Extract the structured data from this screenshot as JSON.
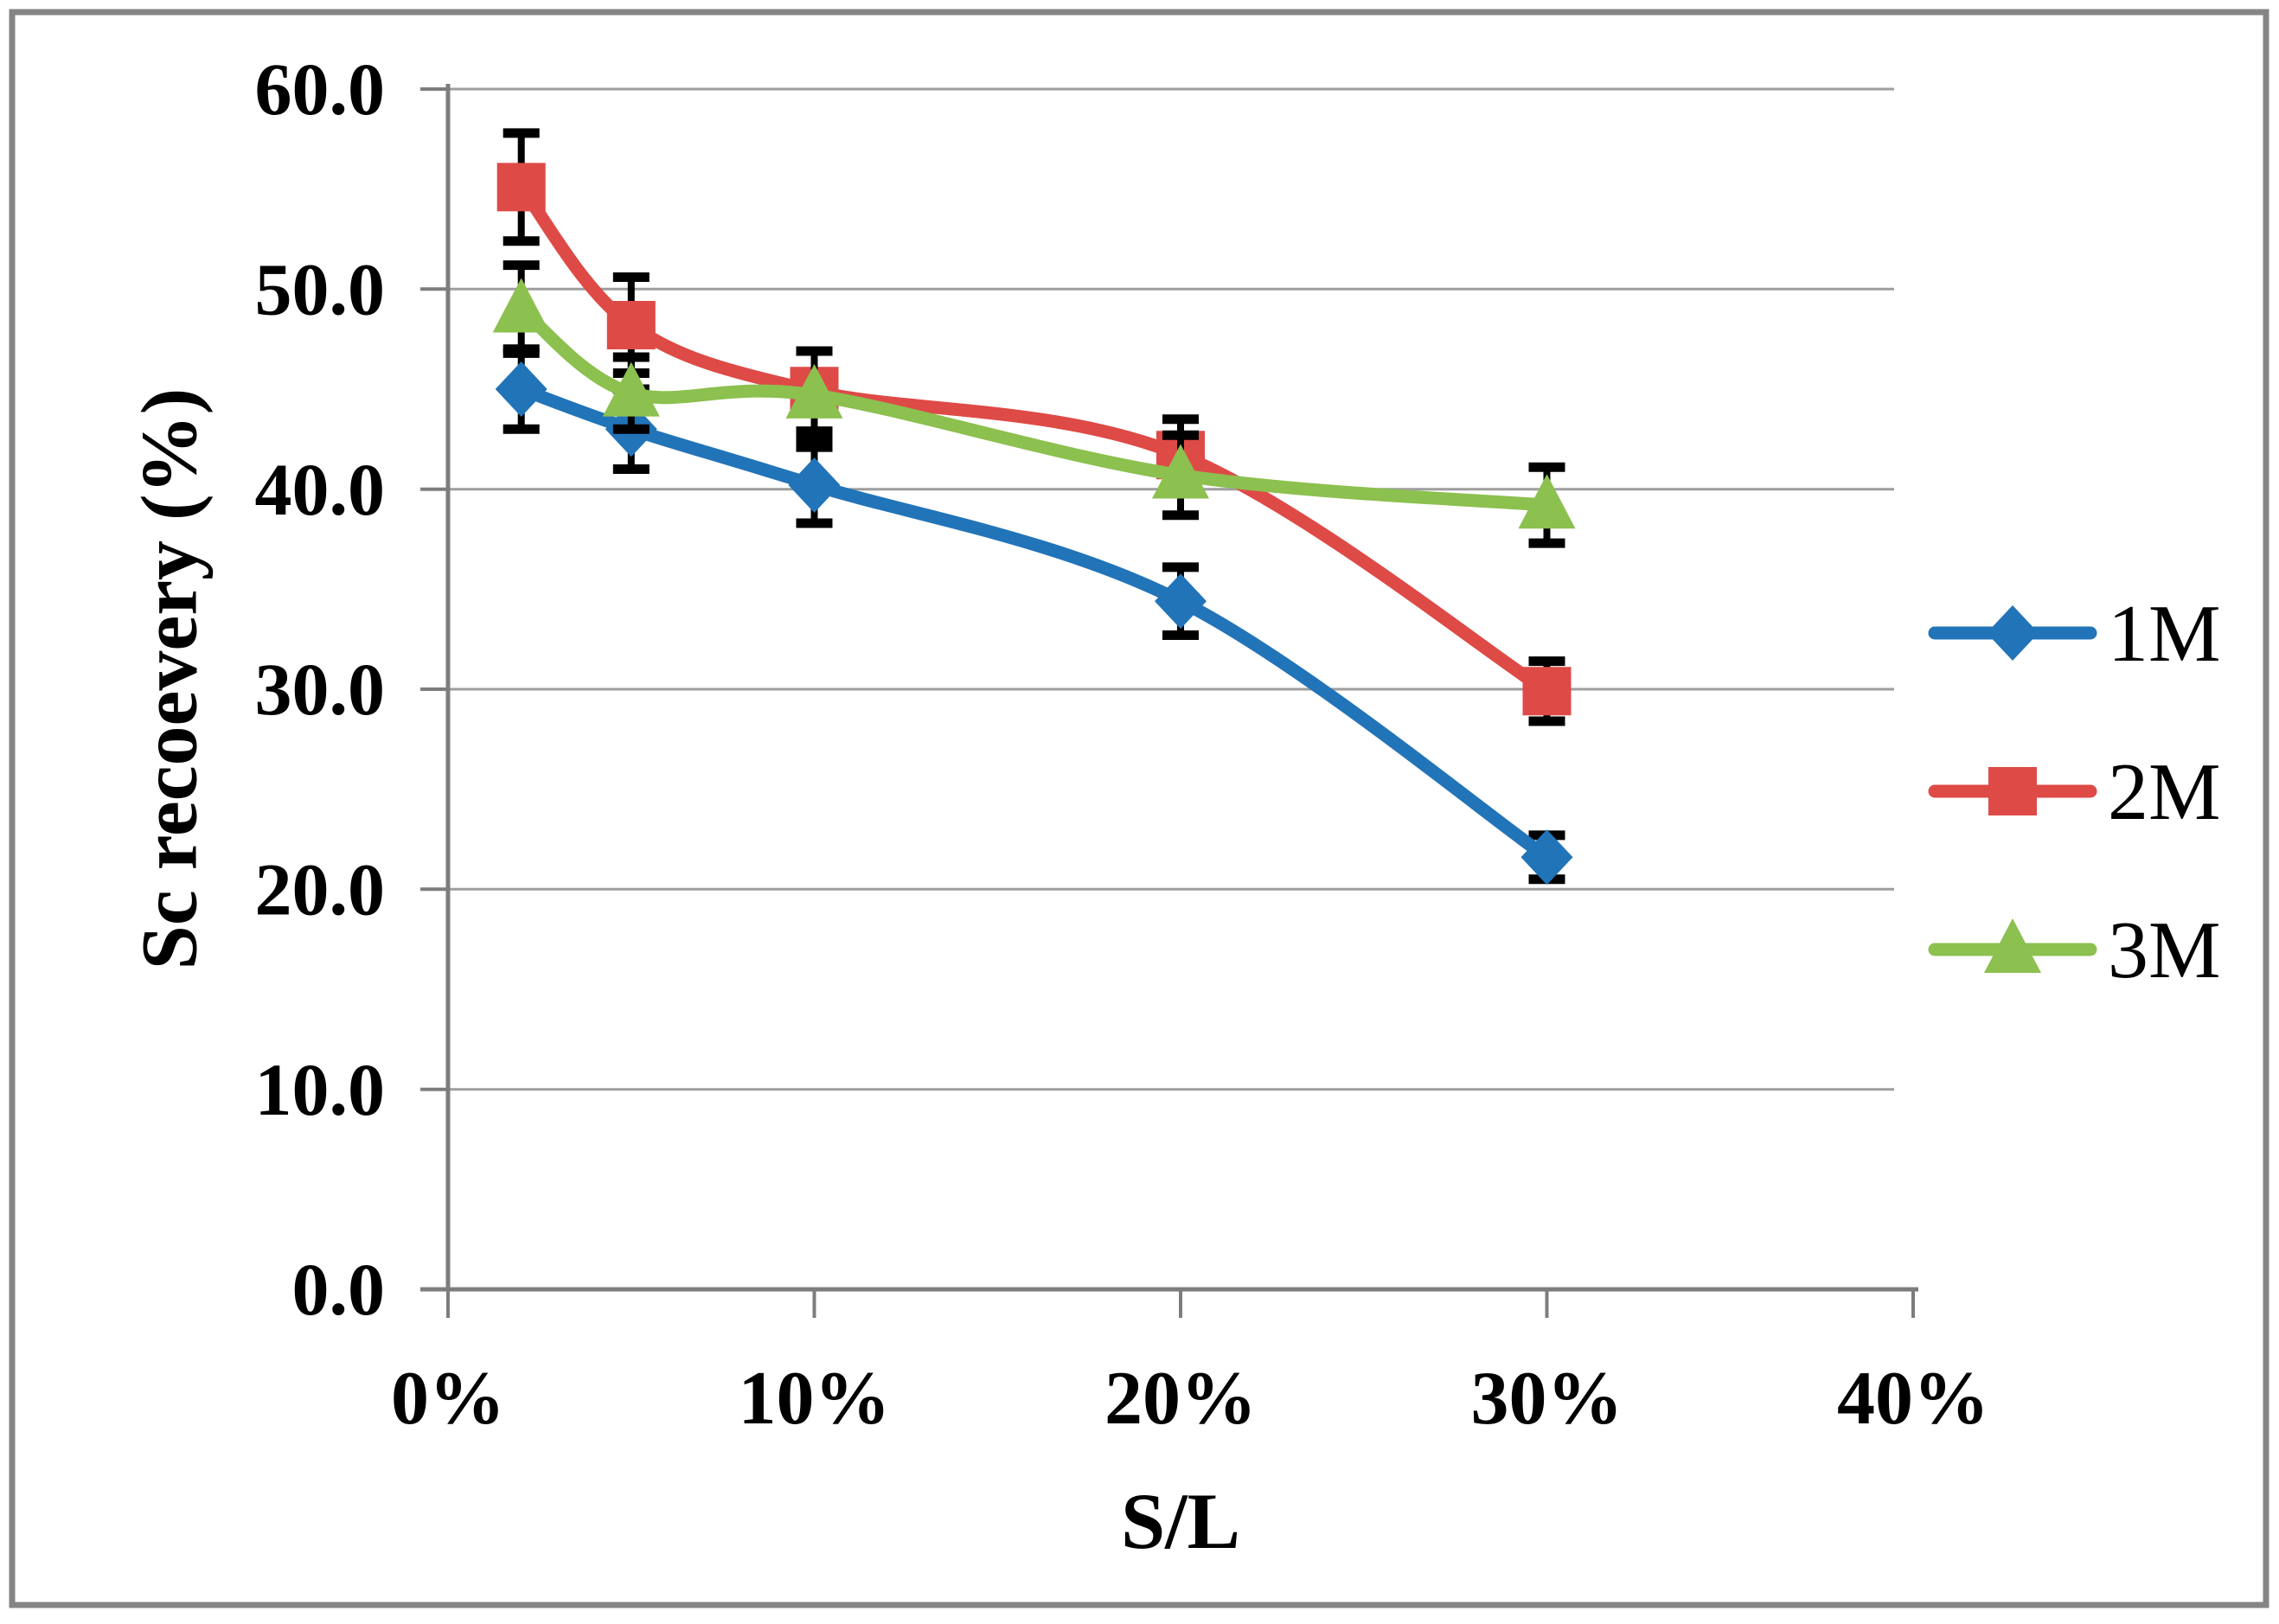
{
  "chart_data": {
    "type": "line",
    "title": "",
    "xlabel": "S/L",
    "ylabel": "Sc recoevery (%)",
    "xlim_percent": [
      0,
      40
    ],
    "ylim": [
      0,
      60
    ],
    "x_ticks_percent": [
      0,
      10,
      20,
      30,
      40
    ],
    "x_tick_labels": [
      "0%",
      "10%",
      "20%",
      "30%",
      "40%"
    ],
    "y_ticks": [
      0,
      10,
      20,
      30,
      40,
      50,
      60
    ],
    "y_tick_labels": [
      "0.0",
      "10.0",
      "20.0",
      "30.0",
      "40.0",
      "50.0",
      "60.0"
    ],
    "grid": "horizontal",
    "legend_position": "right-outside",
    "error_bars": true,
    "x_percent": [
      2,
      5,
      10,
      20,
      30
    ],
    "series": [
      {
        "name": "1M",
        "marker": "diamond",
        "color": "#2274b8",
        "values": [
          45.0,
          43.0,
          40.2,
          34.4,
          21.6
        ],
        "errors": [
          2.0,
          2.0,
          1.9,
          1.7,
          1.1
        ]
      },
      {
        "name": "2M",
        "marker": "square",
        "color": "#de4a46",
        "values": [
          55.1,
          48.2,
          44.9,
          41.7,
          29.9
        ],
        "errors": [
          2.7,
          2.4,
          2.0,
          1.8,
          1.5
        ]
      },
      {
        "name": "3M",
        "marker": "triangle",
        "color": "#8cc04f",
        "values": [
          49.0,
          44.8,
          44.7,
          40.7,
          39.2
        ],
        "errors": [
          2.2,
          1.8,
          2.2,
          2.0,
          1.9
        ]
      }
    ],
    "colors": {
      "axis": "#7d7d7d",
      "gridline": "#9e9e9e",
      "error_bar": "#000000",
      "text": "#000000",
      "frame_border": "#858585",
      "background": "#ffffff"
    }
  }
}
